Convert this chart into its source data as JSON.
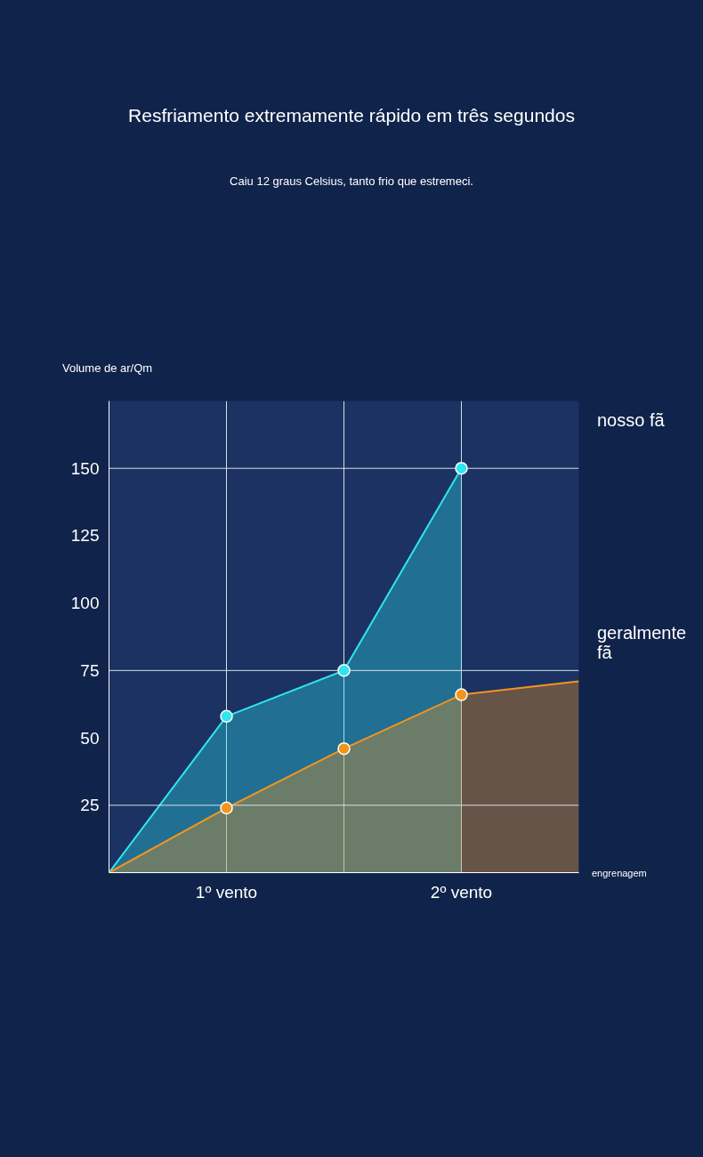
{
  "chart_data": {
    "type": "area",
    "title": "Resfriamento extremamente rápido em três segundos",
    "subtitle": "Caiu 12 graus Celsius, tanto frio que estremeci.",
    "ylabel": "Volume de ar/Qm",
    "xlabel": "engrenagem",
    "categories": [
      null,
      "1º vento",
      null,
      "2º vento",
      null
    ],
    "ylim": [
      0,
      175
    ],
    "yticks": [
      25,
      50,
      75,
      100,
      125,
      150
    ],
    "grid": "x",
    "ref_lines": [
      {
        "axis": "y",
        "value": 25,
        "color": "#d8dee8"
      },
      {
        "axis": "y",
        "value": 75,
        "color": "#d8dee8"
      },
      {
        "axis": "y",
        "value": 150,
        "color": "#d8dee8"
      }
    ],
    "series": [
      {
        "name": "nosso fã",
        "color": "#2ee6f0",
        "values": [
          0,
          58,
          75,
          150,
          null
        ]
      },
      {
        "type": "scatter",
        "color": "#2ee6f0",
        "values": [
          null,
          58,
          75,
          150,
          null
        ]
      },
      {
        "name": "geralmente fã",
        "color": "#f7941d",
        "values": [
          0,
          24,
          46,
          66,
          71
        ]
      },
      {
        "type": "scatter",
        "color": "#f7941d",
        "values": [
          null,
          24,
          46,
          66,
          null
        ]
      }
    ]
  }
}
